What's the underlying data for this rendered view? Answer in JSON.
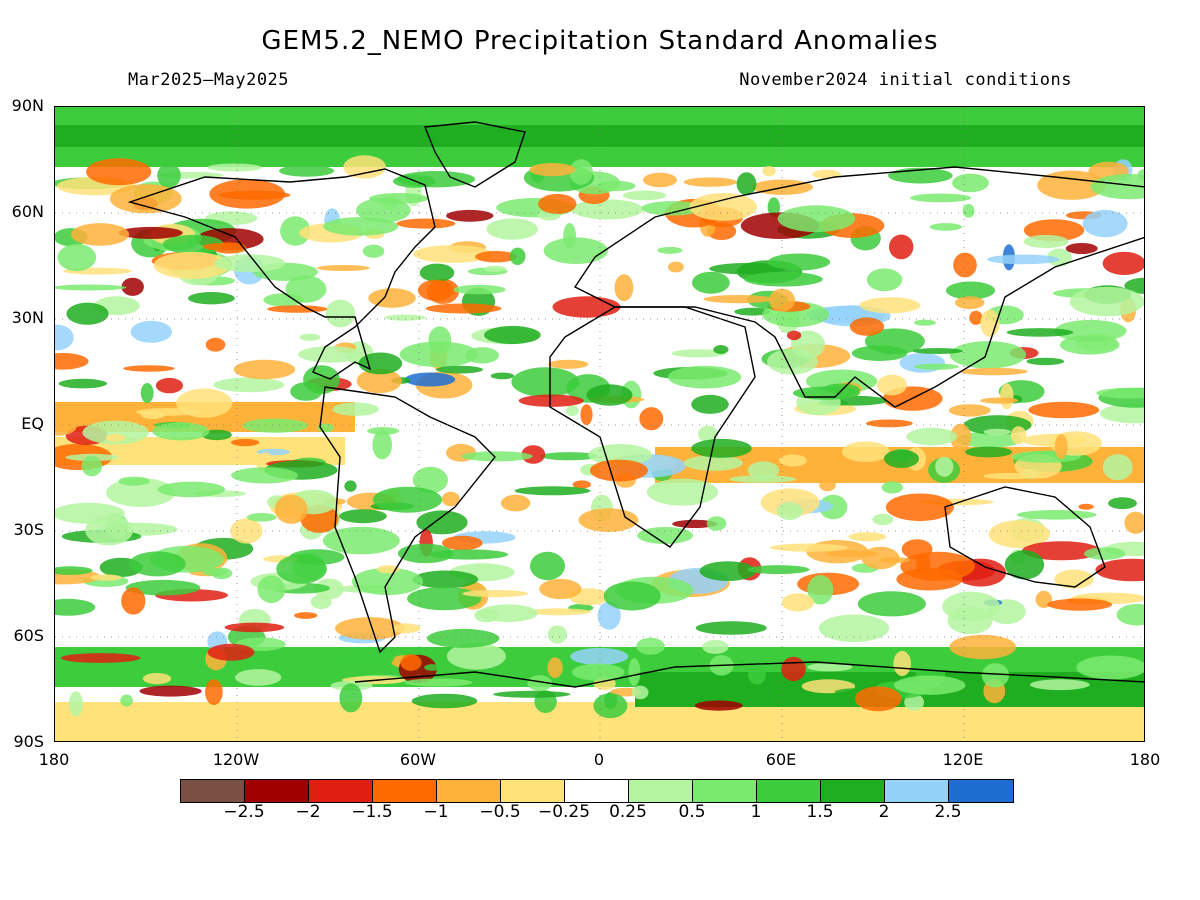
{
  "title": "GEM5.2_NEMO Precipitation Standard Anomalies",
  "period": "Mar2025—May2025",
  "init": "November2024 initial conditions",
  "lat_labels": [
    "90N",
    "60N",
    "30N",
    "EQ",
    "30S",
    "60S",
    "90S"
  ],
  "lon_labels": [
    "180",
    "120W",
    "60W",
    "0",
    "60E",
    "120E",
    "180"
  ],
  "legend": {
    "colors": [
      "#7a5044",
      "#a00000",
      "#e01e12",
      "#ff6a00",
      "#ffb23a",
      "#ffe27a",
      "#ffffff",
      "#b4f5a0",
      "#7aea6e",
      "#3ccc3c",
      "#1fae20",
      "#94d2fa",
      "#1e6ed2"
    ],
    "labels": [
      "−2.5",
      "−2",
      "−1.5",
      "−1",
      "−0.5",
      "−0.25",
      "0.25",
      "0.5",
      "1",
      "1.5",
      "2",
      "2.5"
    ]
  }
}
